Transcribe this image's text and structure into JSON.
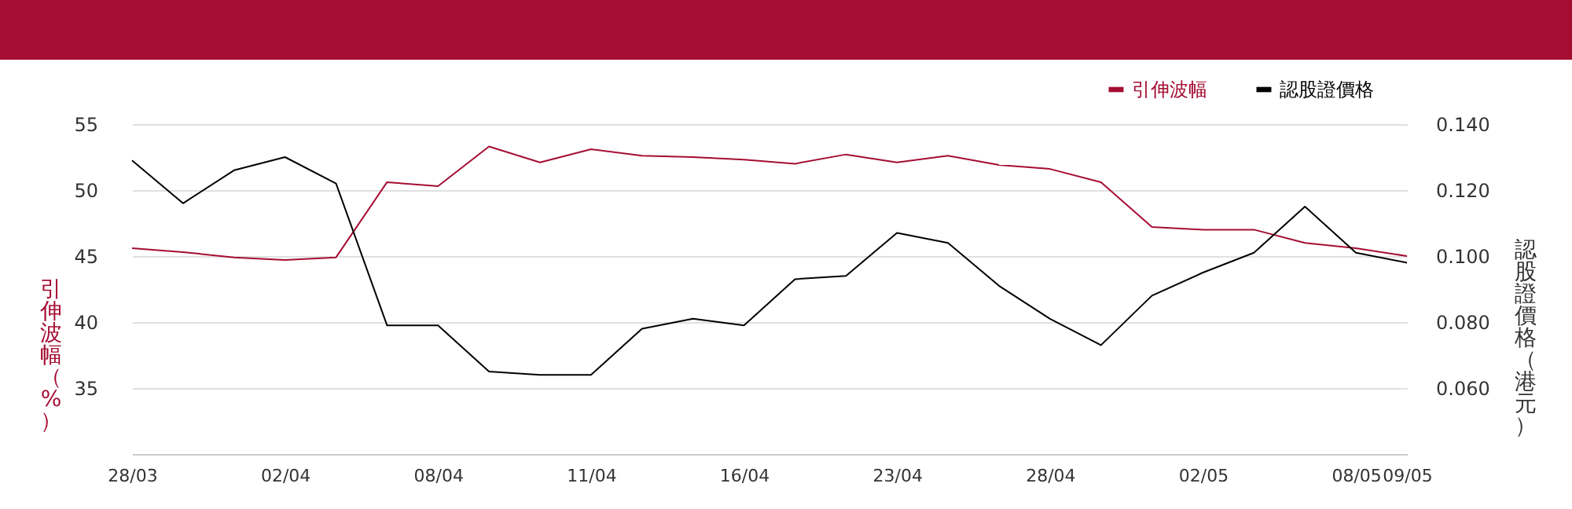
{
  "chart_data": {
    "type": "line",
    "ylabel": "引伸波幅（%）",
    "y2label": "認股證價格（港元）",
    "categories": [
      "28/03",
      null,
      null,
      "02/04",
      null,
      null,
      "08/04",
      null,
      null,
      "11/04",
      null,
      null,
      "16/04",
      null,
      null,
      "23/04",
      null,
      null,
      "28/04",
      null,
      null,
      "02/05",
      null,
      null,
      "08/05",
      "09/05"
    ],
    "series": [
      {
        "name": "引伸波幅",
        "color": "#a50d33",
        "values": [
          45.6,
          45.3,
          44.9,
          44.7,
          44.9,
          50.6,
          50.3,
          53.3,
          52.1,
          53.1,
          52.6,
          52.5,
          52.3,
          52.0,
          52.7,
          52.1,
          52.6,
          51.9,
          51.6,
          50.6,
          47.2,
          47.0,
          47.0,
          46.0,
          45.6,
          45.0
        ]
      },
      {
        "name": "認股證價格",
        "color": "#000000",
        "axis": "y2",
        "values": [
          0.129,
          0.116,
          0.126,
          0.13,
          0.122,
          0.079,
          0.079,
          0.065,
          0.064,
          0.064,
          0.078,
          0.081,
          0.079,
          0.093,
          0.094,
          0.107,
          0.104,
          0.091,
          0.081,
          0.073,
          0.088,
          0.095,
          0.101,
          0.115,
          0.101,
          0.098
        ]
      }
    ],
    "ylim": [
      30,
      55
    ],
    "yticks": [
      35,
      40,
      45,
      50,
      55
    ],
    "y2lim": [
      0.04,
      0.14
    ],
    "y2ticks": [
      {
        "value": 0.06,
        "label": "0.060"
      },
      {
        "value": 0.08,
        "label": "0.080"
      },
      {
        "value": 0.1,
        "label": "0.100"
      },
      {
        "value": 0.12,
        "label": "0.120"
      },
      {
        "value": 0.14,
        "label": "0.140"
      }
    ],
    "grid": "y",
    "legend": "top right",
    "marker": "none",
    "line_style": "solid"
  }
}
